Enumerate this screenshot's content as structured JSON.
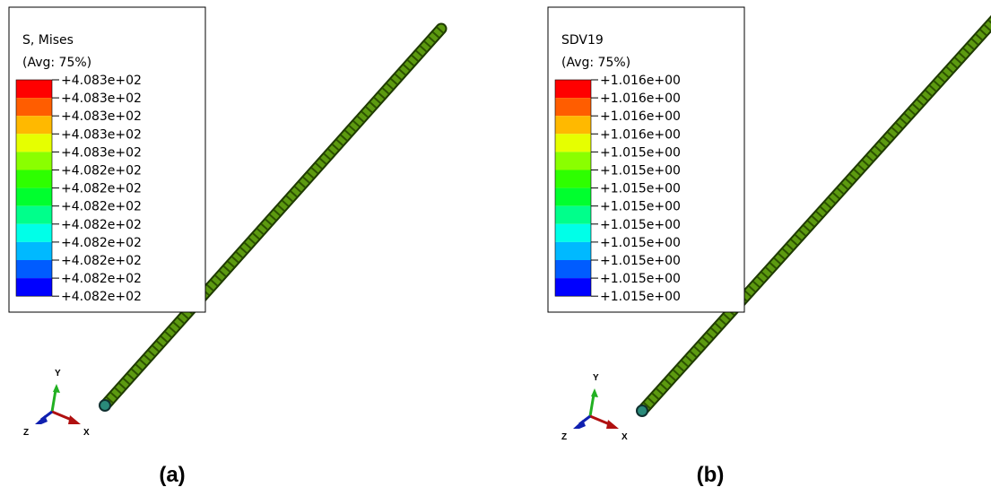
{
  "panels": [
    {
      "legend": {
        "title": "S, Mises",
        "subtitle": "(Avg: 75%)",
        "labels": [
          "+4.083e+02",
          "+4.083e+02",
          "+4.083e+02",
          "+4.083e+02",
          "+4.083e+02",
          "+4.082e+02",
          "+4.082e+02",
          "+4.082e+02",
          "+4.082e+02",
          "+4.082e+02",
          "+4.082e+02",
          "+4.082e+02",
          "+4.082e+02"
        ]
      },
      "triad": {
        "y": "Y",
        "z": "Z",
        "x": "X"
      },
      "caption": "(a)"
    },
    {
      "legend": {
        "title": "SDV19",
        "subtitle": "(Avg: 75%)",
        "labels": [
          "+1.016e+00",
          "+1.016e+00",
          "+1.016e+00",
          "+1.016e+00",
          "+1.015e+00",
          "+1.015e+00",
          "+1.015e+00",
          "+1.015e+00",
          "+1.015e+00",
          "+1.015e+00",
          "+1.015e+00",
          "+1.015e+00",
          "+1.015e+00"
        ]
      },
      "triad": {
        "y": "Y",
        "z": "Z",
        "x": "X"
      },
      "caption": "(b)"
    }
  ]
}
